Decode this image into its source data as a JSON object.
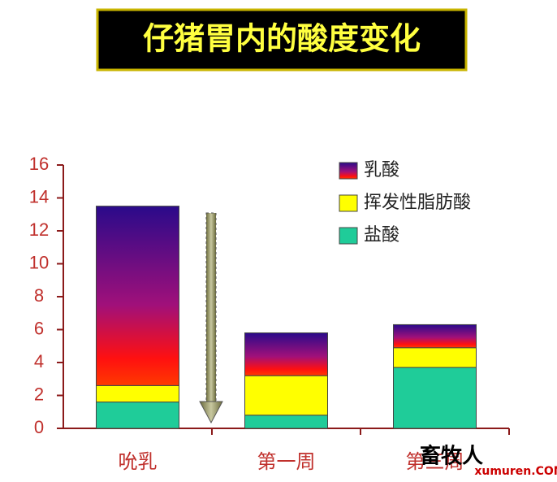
{
  "chart_data": {
    "type": "stacked-bar",
    "title": "仔猪胃内的酸度变化",
    "categories": [
      "吮乳",
      "第一周",
      "第三周"
    ],
    "series": [
      {
        "name": "乳酸",
        "color": "#3b0f96",
        "values": [
          10.9,
          2.6,
          1.4
        ]
      },
      {
        "name": "挥发性脂肪酸",
        "color": "#ffff00",
        "values": [
          1.0,
          2.4,
          1.2
        ]
      },
      {
        "name": "盐酸",
        "color": "#1fcc99",
        "values": [
          1.6,
          0.8,
          3.7
        ]
      }
    ],
    "ylim": [
      0,
      16
    ],
    "yticks": [
      0,
      2,
      4,
      6,
      8,
      10,
      12,
      14,
      16
    ],
    "watermark": [
      "畜牧人",
      "xumuren.COM"
    ]
  }
}
